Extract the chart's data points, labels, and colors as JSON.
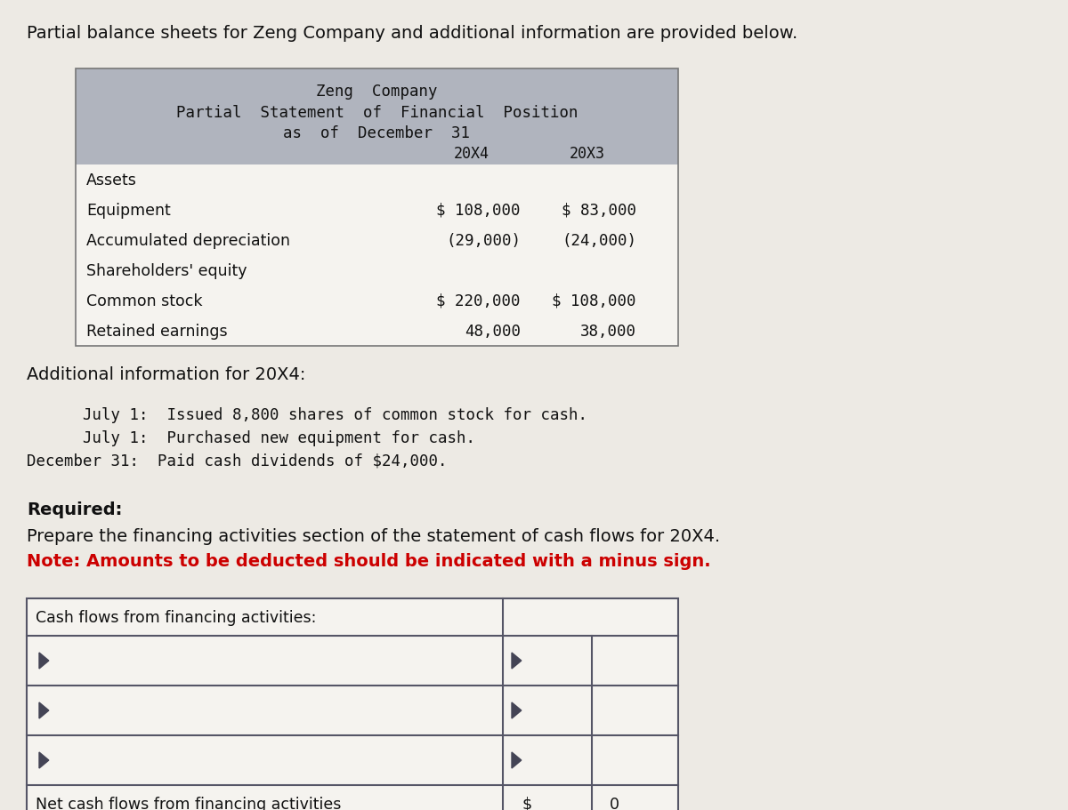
{
  "bg_color": "#edeae4",
  "title_intro": "Partial balance sheets for Zeng Company and additional information are provided below.",
  "table_header_bg": "#b0b4be",
  "table_header_lines": [
    "Zeng  Company",
    "Partial  Statement  of  Financial  Position",
    "as  of  December  31"
  ],
  "col_headers": [
    "20X4",
    "20X3"
  ],
  "rows": [
    {
      "label": "Assets",
      "val20x4": "",
      "val20x3": ""
    },
    {
      "label": "Equipment",
      "val20x4": "$ 108,000",
      "val20x3": "$ 83,000"
    },
    {
      "label": "Accumulated depreciation",
      "val20x4": "(29,000)",
      "val20x3": "(24,000)"
    },
    {
      "label": "Shareholders' equity",
      "val20x4": "",
      "val20x3": ""
    },
    {
      "label": "Common stock",
      "val20x4": "$ 220,000",
      "val20x3": "$ 108,000"
    },
    {
      "label": "Retained earnings",
      "val20x4": "48,000",
      "val20x3": "38,000"
    }
  ],
  "additional_info_header": "Additional information for 20X4:",
  "additional_info_lines": [
    "      July 1:  Issued 8,800 shares of common stock for cash.",
    "      July 1:  Purchased new equipment for cash.",
    "December 31:  Paid cash dividends of $24,000."
  ],
  "required_header": "Required:",
  "required_line1": "Prepare the financing activities section of the statement of cash flows for 20X4.",
  "required_line2": "Note: Amounts to be deducted should be indicated with a minus sign.",
  "table2_header": "Cash flows from financing activities:",
  "table2_net_label": "Net cash flows from financing activities",
  "table2_net_dollar": "$",
  "table2_net_value": "0"
}
